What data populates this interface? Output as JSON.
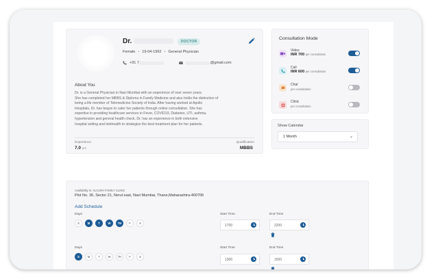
{
  "profile": {
    "name_prefix": "Dr.",
    "badge": "DOCTOR",
    "gender": "Female",
    "dob": "19-04-1992",
    "specialty": "General Physician",
    "phone_prefix": "+91 7",
    "email_suffix": "@gmail.com",
    "about_title": "About You",
    "about_lines": [
      "Dr.                       is a General Physician in Navi Mumbai with an experience of over seven years.",
      "She has completed her MBBS & Diploma in Family Medicine and also holds the distinction of",
      "being a life member of Telemedicine Society of India. After having worked at Apollo",
      "Hospitals, Dr.               has begun to cater her patients through online consultation. She has",
      "expertise in providing healthcare services in Fever, COVID19, Diabetes, UTI, asthma,",
      "hypertension and general health check. Dr.                        has an experience in both extensive",
      "hospital setting and telehealth to strategize the best treatment plan for her patients."
    ],
    "experience_label": "Experience",
    "experience_value": "7.0",
    "experience_unit": "yrs",
    "qualification_label": "Qualification",
    "qualification_value": "MBBS"
  },
  "consultation": {
    "title": "Consultation Mode",
    "modes": [
      {
        "name": "Video",
        "price": "INR 700",
        "per": "per consultation",
        "icon": "video-icon",
        "enabled": true
      },
      {
        "name": "Call",
        "price": "INR 600",
        "per": "per consultation",
        "icon": "phone-icon",
        "enabled": true
      },
      {
        "name": "Chat",
        "price": "",
        "per": "per consultation",
        "icon": "chat-icon",
        "enabled": false
      },
      {
        "name": "Clinic",
        "price": "",
        "per": "per consultation",
        "icon": "clinic-icon",
        "enabled": false
      }
    ]
  },
  "calendar": {
    "label": "Show Calendar",
    "selected": "1 Month"
  },
  "schedule": {
    "availability": "Availability in: ALCURA FAMILY CLINIC",
    "address": "Plot No. 36, Sector 21, Nerul east, Navi Mumbai, Thane,Maharashtra-400706",
    "add_label": "Add Schedule",
    "days_label": "Days",
    "start_label": "Start Time",
    "end_label": "End Time",
    "day_letters": [
      "S",
      "M",
      "T",
      "W",
      "TH",
      "F",
      "S"
    ],
    "slots": [
      {
        "selected": [
          false,
          true,
          true,
          true,
          true,
          false,
          false
        ],
        "start": "1700",
        "end": "2200"
      },
      {
        "selected": [
          true,
          false,
          false,
          false,
          false,
          false,
          false
        ],
        "start": "1300",
        "end": "1500"
      }
    ]
  },
  "colors": {
    "accent": "#1d5c96",
    "badge_bg": "#d7eceb",
    "badge_text": "#4a8f93"
  }
}
